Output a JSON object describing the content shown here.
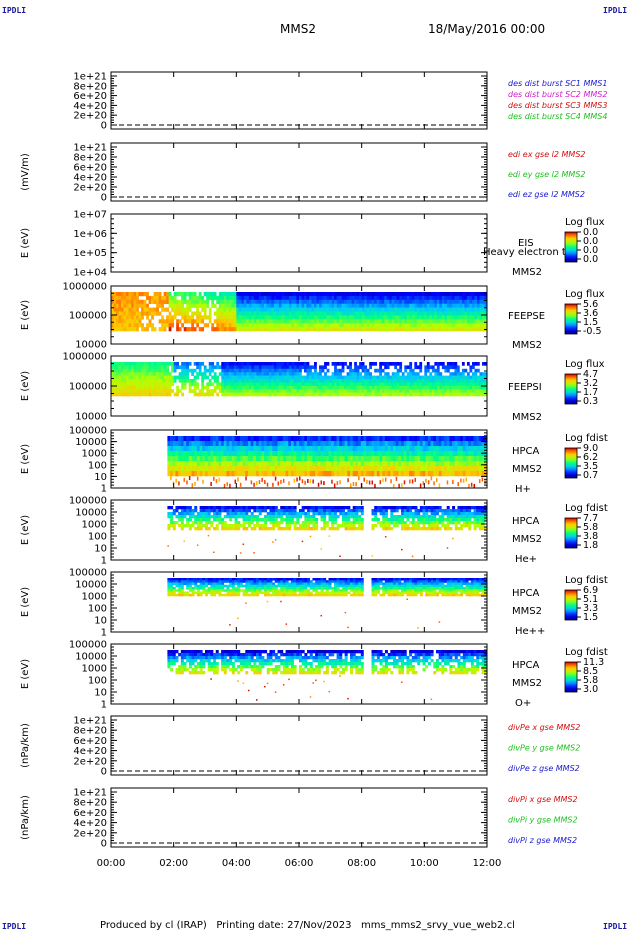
{
  "corner_left_top": "IPDLI",
  "corner_right_top": "IPDLI",
  "corner_left_bottom": "IPDLI",
  "corner_right_bottom": "IPDLI",
  "header": {
    "spacecraft": "MMS2",
    "date": "18/May/2016 00:00"
  },
  "footer": {
    "text": "Produced by cl (IRAP)   Printing date: 27/Nov/2023   mms_mms2_srvy_vue_web2.cl"
  },
  "colors": {
    "blue": "#1a1ad0",
    "magenta": "#d020d0",
    "red": "#d01010",
    "green": "#20c020"
  },
  "chart_data": {
    "type": "stacked multi-panel time series / spectrogram",
    "x_axis": {
      "range": [
        "00:00",
        "12:00"
      ],
      "tick_labels": [
        "00:00",
        "02:00",
        "04:00",
        "06:00",
        "08:00",
        "10:00",
        "12:00"
      ]
    },
    "panels": [
      {
        "kind": "line",
        "ylabel": "",
        "tick_labels": [
          "1e+21",
          "8e+20",
          "6e+20",
          "4e+20",
          "2e+20",
          "0"
        ],
        "series": [
          {
            "name": "des dist burst SC1 MMS1",
            "color": "blue"
          },
          {
            "name": "des dist burst SC2 MMS2",
            "color": "magenta"
          },
          {
            "name": "des dist burst SC3 MMS3",
            "color": "red"
          },
          {
            "name": "des dist burst SC4 MMS4",
            "color": "green"
          }
        ]
      },
      {
        "kind": "line",
        "ylabel": "(mV/m)",
        "tick_labels": [
          "1e+21",
          "8e+20",
          "6e+20",
          "4e+20",
          "2e+20",
          "0"
        ],
        "series": [
          {
            "name": "edi ex gse l2 MMS2",
            "color": "red"
          },
          {
            "name": "edi ey gse l2 MMS2",
            "color": "green"
          },
          {
            "name": "edi ez gse l2 MMS2",
            "color": "blue"
          }
        ]
      },
      {
        "kind": "spectrogram",
        "ylabel": "E (eV)",
        "tick_labels": [
          "1e+07",
          "1e+06",
          "1e+05",
          "1e+04"
        ],
        "labels": [
          "EIS",
          "Heavy electron to",
          "MMS2"
        ],
        "cb_title": "Log flux",
        "cb_ticks": [
          "0.0",
          "0.0",
          "0.0",
          "0.0"
        ],
        "data": null
      },
      {
        "kind": "spectrogram",
        "ylabel": "E (eV)",
        "tick_labels": [
          "1000000",
          "100000",
          "10000"
        ],
        "labels": [
          "FEEPSE",
          "MMS2"
        ],
        "cb_title": "Log flux",
        "cb_ticks": [
          "5.6",
          "3.6",
          "1.5",
          "-0.5"
        ],
        "data": "feepse"
      },
      {
        "kind": "spectrogram",
        "ylabel": "E (eV)",
        "tick_labels": [
          "1000000",
          "100000",
          "10000"
        ],
        "labels": [
          "FEEPSI",
          "MMS2"
        ],
        "cb_title": "Log flux",
        "cb_ticks": [
          "4.7",
          "3.2",
          "1.7",
          "0.3"
        ],
        "data": "feepsi"
      },
      {
        "kind": "spectrogram",
        "ylabel": "E (eV)",
        "tick_labels": [
          "100000",
          "10000",
          "1000",
          "100",
          "10",
          "1"
        ],
        "labels": [
          "HPCA",
          "MMS2",
          "H+"
        ],
        "cb_title": "Log fdist",
        "cb_ticks": [
          "9.0",
          "6.2",
          "3.5",
          "0.7"
        ],
        "data": "hpca_h"
      },
      {
        "kind": "spectrogram",
        "ylabel": "E (eV)",
        "tick_labels": [
          "100000",
          "10000",
          "1000",
          "100",
          "10",
          "1"
        ],
        "labels": [
          "HPCA",
          "MMS2",
          "He+"
        ],
        "cb_title": "Log fdist",
        "cb_ticks": [
          "7.7",
          "5.8",
          "3.8",
          "1.8"
        ],
        "data": "hpca_he"
      },
      {
        "kind": "spectrogram",
        "ylabel": "E (eV)",
        "tick_labels": [
          "100000",
          "10000",
          "1000",
          "100",
          "10",
          "1"
        ],
        "labels": [
          "HPCA",
          "MMS2",
          "He++"
        ],
        "cb_title": "Log fdist",
        "cb_ticks": [
          "6.9",
          "5.1",
          "3.3",
          "1.5"
        ],
        "data": "hpca_hepp"
      },
      {
        "kind": "spectrogram",
        "ylabel": "E (eV)",
        "tick_labels": [
          "100000",
          "10000",
          "1000",
          "100",
          "10",
          "1"
        ],
        "labels": [
          "HPCA",
          "MMS2",
          "O+"
        ],
        "cb_title": "Log fdist",
        "cb_ticks": [
          "11.3",
          "8.5",
          "5.8",
          "3.0"
        ],
        "data": "hpca_o"
      },
      {
        "kind": "line",
        "ylabel": "(nPa/km)",
        "tick_labels": [
          "1e+21",
          "8e+20",
          "6e+20",
          "4e+20",
          "2e+20",
          "0"
        ],
        "series": [
          {
            "name": "divPe x gse MMS2",
            "color": "red"
          },
          {
            "name": "divPe y gse MMS2",
            "color": "green"
          },
          {
            "name": "divPe z gse MMS2",
            "color": "blue"
          }
        ]
      },
      {
        "kind": "line",
        "ylabel": "(nPa/km)",
        "tick_labels": [
          "1e+21",
          "8e+20",
          "6e+20",
          "4e+20",
          "2e+20",
          "0"
        ],
        "series": [
          {
            "name": "divPi x gse MMS2",
            "color": "red"
          },
          {
            "name": "divPi y gse MMS2",
            "color": "green"
          },
          {
            "name": "divPi z gse MMS2",
            "color": "blue"
          }
        ]
      }
    ]
  }
}
